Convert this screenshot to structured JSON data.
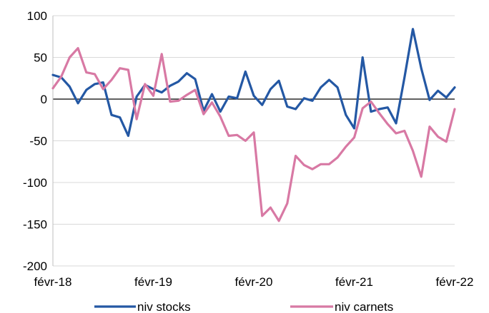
{
  "chart_data": {
    "type": "line",
    "title": "",
    "xlabel": "",
    "ylabel": "",
    "ylim": [
      -200,
      100
    ],
    "yticks": [
      100,
      50,
      0,
      -50,
      -100,
      -150,
      -200
    ],
    "xtick_labels": [
      "févr-18",
      "févr-19",
      "févr-20",
      "févr-21",
      "févr-22"
    ],
    "grid": true,
    "legend_position": "bottom",
    "series": [
      {
        "name": "niv stocks",
        "color": "#2458a4",
        "values": [
          29,
          26,
          15,
          -5,
          11,
          18,
          20,
          -19,
          -22,
          -44,
          3,
          17,
          12,
          8,
          16,
          21,
          31,
          24,
          -14,
          6,
          -15,
          3,
          1,
          33,
          4,
          -7,
          12,
          22,
          -9,
          -12,
          1,
          -2,
          14,
          23,
          14,
          -19,
          -35,
          50,
          -15,
          -12,
          -10,
          -29,
          26,
          84,
          37,
          -1,
          10,
          2,
          14
        ]
      },
      {
        "name": "niv carnets",
        "color": "#d879a4",
        "values": [
          13,
          27,
          50,
          61,
          32,
          30,
          12,
          23,
          37,
          35,
          -24,
          18,
          4,
          54,
          -3,
          -2,
          5,
          11,
          -18,
          -4,
          -21,
          -44,
          -43,
          -50,
          -40,
          -140,
          -130,
          -146,
          -125,
          -68,
          -79,
          -84,
          -78,
          -78,
          -70,
          -57,
          -46,
          -11,
          -3,
          -17,
          -30,
          -41,
          -38,
          -62,
          -93,
          -33,
          -45,
          -51,
          -12
        ]
      }
    ]
  }
}
